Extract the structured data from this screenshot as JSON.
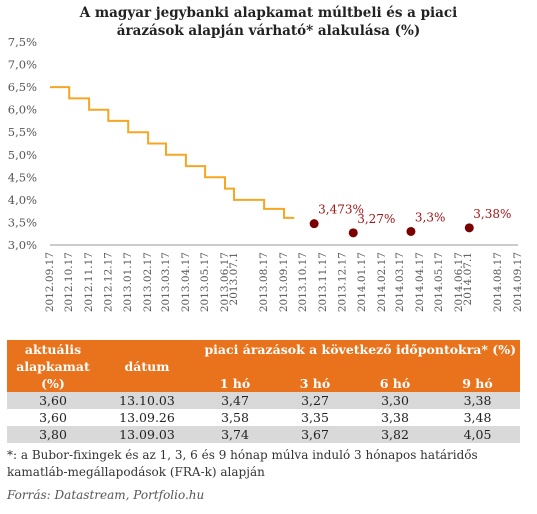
{
  "chart_data": {
    "type": "line",
    "title_line1": "A magyar jegybanki alapkamat múltbeli és a piaci",
    "title_line2": "árazások alapján várható* alakulása (%)",
    "ylim": [
      3.0,
      7.5
    ],
    "y_ticks": [
      "3,0%",
      "3,5%",
      "4,0%",
      "4,5%",
      "5,0%",
      "5,5%",
      "6,0%",
      "6,5%",
      "7,0%",
      "7,5%"
    ],
    "y_tick_values": [
      3.0,
      3.5,
      4.0,
      4.5,
      5.0,
      5.5,
      6.0,
      6.5,
      7.0,
      7.5
    ],
    "x_ticks": [
      "2012.09.17",
      "2012.10.17",
      "2012.11.17",
      "2012.12.17",
      "2013.01.17",
      "2013.02.17",
      "2013.03.17",
      "2013.04.17",
      "2013.05.17",
      "2013.06.17",
      "2013.07.1",
      "2013.08.17",
      "2013.09.17",
      "2013.10.17",
      "2013.11.17",
      "2013.12.17",
      "2014.01.17",
      "2014.02.17",
      "2014.03.17",
      "2014.04.17",
      "2014.05.17",
      "2014.06.17",
      "2014.07.1",
      "2014.08.17",
      "2014.09.17"
    ],
    "grid": false,
    "step_series": {
      "color": "#f5a623",
      "x": [
        "2012.09.17",
        "2012.10.17",
        "2012.10.17",
        "2012.11.17",
        "2012.11.17",
        "2012.12.17",
        "2012.12.17",
        "2013.01.17",
        "2013.01.17",
        "2013.02.17",
        "2013.02.17",
        "2013.03.17",
        "2013.03.17",
        "2013.04.17",
        "2013.04.17",
        "2013.05.17",
        "2013.05.17",
        "2013.06.17",
        "2013.06.17",
        "2013.07.1",
        "2013.07.1",
        "2013.08.17",
        "2013.08.17",
        "2013.09.17",
        "2013.09.17",
        "2013.10.03"
      ],
      "y": [
        6.5,
        6.5,
        6.25,
        6.25,
        6.0,
        6.0,
        5.75,
        5.75,
        5.5,
        5.5,
        5.25,
        5.25,
        5.0,
        5.0,
        4.75,
        4.75,
        4.5,
        4.5,
        4.25,
        4.25,
        4.0,
        4.0,
        3.8,
        3.8,
        3.6,
        3.6
      ]
    },
    "forecast_series": {
      "color": "#7b0000",
      "x": [
        "2013.11.03",
        "2014.01.03",
        "2014.04.03",
        "2014.07.03"
      ],
      "values": [
        3.473,
        3.27,
        3.3,
        3.38
      ],
      "labels": [
        "3,473%",
        "3,27%",
        "3,3%",
        "3,38%"
      ]
    }
  },
  "table": {
    "header_col1": [
      "aktuális",
      "alapkamat",
      "(%)"
    ],
    "header_col2": "dátum",
    "header_group": "piaci árazások a következő időpontokra* (%)",
    "horizons": [
      "1 hó",
      "3 hó",
      "6 hó",
      "9 hó"
    ],
    "rows": [
      {
        "rate": "3,60",
        "date": "13.10.03",
        "h1": "3,47",
        "h3": "3,27",
        "h6": "3,30",
        "h9": "3,38"
      },
      {
        "rate": "3,60",
        "date": "13.09.26",
        "h1": "3,58",
        "h3": "3,35",
        "h6": "3,38",
        "h9": "3,48"
      },
      {
        "rate": "3,80",
        "date": "13.09.03",
        "h1": "3,74",
        "h3": "3,67",
        "h6": "3,82",
        "h9": "4,05"
      }
    ]
  },
  "footnote": "*: a Bubor-fixingek és  az 1, 3, 6 és 9 hónap múlva induló 3 hónapos határidős kamatláb-megállapodások (FRA-k) alapján",
  "source": "Forrás: Datastream, Portfolio.hu",
  "colors": {
    "orange": "#e8731c",
    "step_line": "#f5a623",
    "forecast": "#7b0000",
    "axis": "#999999",
    "shade": "#d9d9d9"
  }
}
